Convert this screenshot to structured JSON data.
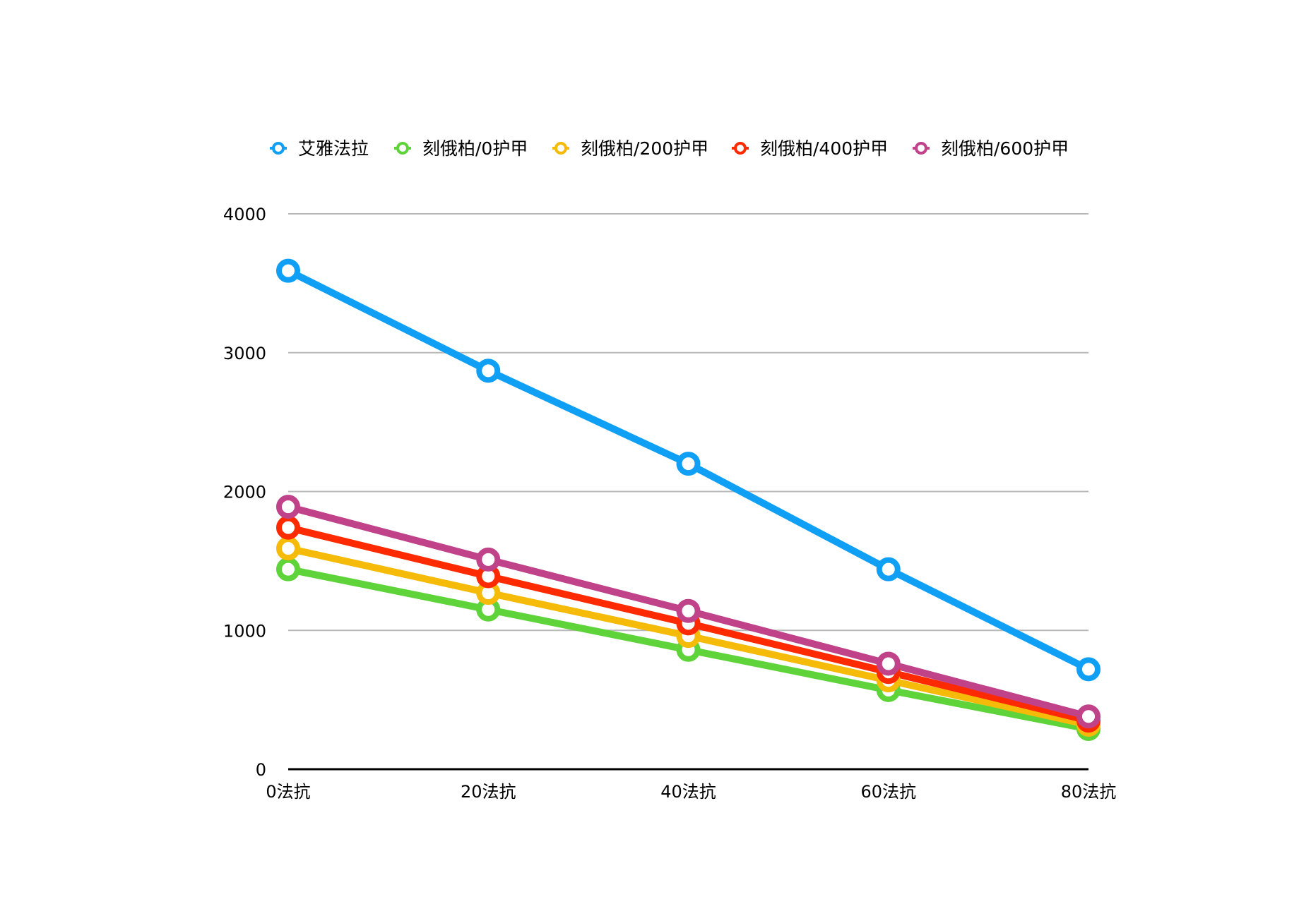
{
  "chart_data": {
    "type": "line",
    "title": "",
    "xlabel": "",
    "ylabel": "",
    "categories": [
      "0法抗",
      "20法抗",
      "40法抗",
      "60法抗",
      "80法抗"
    ],
    "ylim": [
      0,
      4000
    ],
    "yticks": [
      0,
      1000,
      2000,
      3000,
      4000
    ],
    "grid": true,
    "legend_position": "top",
    "series": [
      {
        "name": "艾雅法拉",
        "color": "#0fa0f5",
        "values": [
          3590,
          2870,
          2200,
          1440,
          720
        ]
      },
      {
        "name": "刻俄柏/0护甲",
        "color": "#5fd43a",
        "values": [
          1440,
          1150,
          860,
          570,
          290
        ]
      },
      {
        "name": "刻俄柏/200护甲",
        "color": "#f5bb08",
        "values": [
          1590,
          1270,
          960,
          640,
          320
        ]
      },
      {
        "name": "刻俄柏/400护甲",
        "color": "#ff2a00",
        "values": [
          1740,
          1390,
          1050,
          700,
          350
        ]
      },
      {
        "name": "刻俄柏/600护甲",
        "color": "#c0438a",
        "values": [
          1890,
          1510,
          1140,
          760,
          380
        ]
      }
    ]
  }
}
